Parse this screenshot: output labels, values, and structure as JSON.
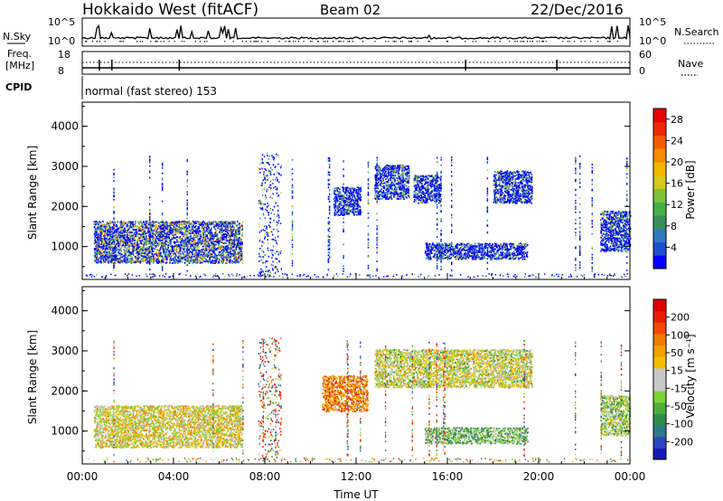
{
  "header": {
    "title": "Hokkaido West (fitACF)",
    "beam": "Beam 02",
    "date": "22/Dec/2016"
  },
  "panels": {
    "nsky_label": "N.Sky",
    "nsky_ticks": [
      "10^5",
      "10^0"
    ],
    "nsearch_label": "N.Search",
    "nsearch_ticks": [
      "10^5",
      "10^0"
    ],
    "freq_label": "Freq.",
    "freq_unit": "[MHz]",
    "freq_ticks": [
      "18",
      "8"
    ],
    "nave_label": "Nave",
    "nave_ticks": [
      "60",
      "0"
    ],
    "cpid_label": "CPID",
    "cpid_text": "normal (fast stereo) 153"
  },
  "axes": {
    "ylabel": "Slant Range [km]",
    "xlabel": "Time UT",
    "yticks": [
      "1000",
      "2000",
      "3000",
      "4000"
    ],
    "xticks": [
      "00:00",
      "04:00",
      "08:00",
      "12:00",
      "16:00",
      "20:00",
      "00:00"
    ]
  },
  "colorbars": {
    "power": {
      "label": "Power [dB]",
      "ticks": [
        "4",
        "8",
        "12",
        "16",
        "20",
        "24",
        "28"
      ],
      "colors": [
        "#0000ff",
        "#1c4fd0",
        "#2f7ac0",
        "#3a8f5c",
        "#44b04a",
        "#7fc33a",
        "#d6c81c",
        "#f4b800",
        "#f68a00",
        "#f45b00",
        "#ee2a00",
        "#e60000"
      ]
    },
    "velocity": {
      "label": "Velocity [m s⁻¹]",
      "ticks": [
        "200",
        "100",
        "50",
        "15",
        "-15",
        "-50",
        "-100",
        "-200"
      ],
      "colors": [
        "#1818b8",
        "#2f46c2",
        "#2d7a8a",
        "#2e8c4a",
        "#4cae3a",
        "#7dd235",
        "#c8c8c8",
        "#c8c8c8",
        "#f2c000",
        "#f4a000",
        "#f27a00",
        "#ef4a00",
        "#e81c00",
        "#e00000"
      ]
    }
  },
  "chart_data": [
    {
      "type": "heatmap",
      "title": "Power",
      "xlabel": "Time UT",
      "ylabel": "Slant Range [km]",
      "xlim": [
        0,
        24
      ],
      "ylim": [
        180,
        4600
      ],
      "colorbar_label": "Power [dB]",
      "colorbar_range": [
        0,
        30
      ],
      "regions": [
        {
          "t0": 0.5,
          "t1": 7.0,
          "r0": 600,
          "r1": 1650,
          "level": "high",
          "note": "strong near-range band"
        },
        {
          "t0": 11.0,
          "t1": 12.2,
          "r0": 1800,
          "r1": 2500,
          "level": "mid"
        },
        {
          "t0": 12.8,
          "t1": 14.3,
          "r0": 2200,
          "r1": 3050,
          "level": "mid"
        },
        {
          "t0": 14.5,
          "t1": 15.7,
          "r0": 2100,
          "r1": 2800,
          "level": "mid"
        },
        {
          "t0": 15.0,
          "t1": 19.5,
          "r0": 700,
          "r1": 1100,
          "level": "mid"
        },
        {
          "t0": 18.0,
          "t1": 19.7,
          "r0": 2100,
          "r1": 2900,
          "level": "mid"
        },
        {
          "t0": 22.7,
          "t1": 24.0,
          "r0": 900,
          "r1": 1900,
          "level": "mid"
        }
      ]
    },
    {
      "type": "heatmap",
      "title": "Velocity",
      "xlabel": "Time UT",
      "ylabel": "Slant Range [km]",
      "xlim": [
        0,
        24
      ],
      "ylim": [
        180,
        4600
      ],
      "colorbar_label": "Velocity [m s⁻¹]",
      "colorbar_range": [
        -250,
        250
      ],
      "regions": [
        {
          "t0": 0.5,
          "t1": 7.0,
          "r0": 600,
          "r1": 1650,
          "velocity": -10
        },
        {
          "t0": 10.5,
          "t1": 12.5,
          "r0": 1500,
          "r1": 2400,
          "velocity": -70
        },
        {
          "t0": 15.0,
          "t1": 19.5,
          "r0": 700,
          "r1": 1100,
          "velocity": 40
        },
        {
          "t0": 12.8,
          "t1": 19.7,
          "r0": 2100,
          "r1": 3050,
          "velocity": 0
        },
        {
          "t0": 22.7,
          "t1": 24.0,
          "r0": 900,
          "r1": 1900,
          "velocity": 20
        }
      ]
    }
  ]
}
